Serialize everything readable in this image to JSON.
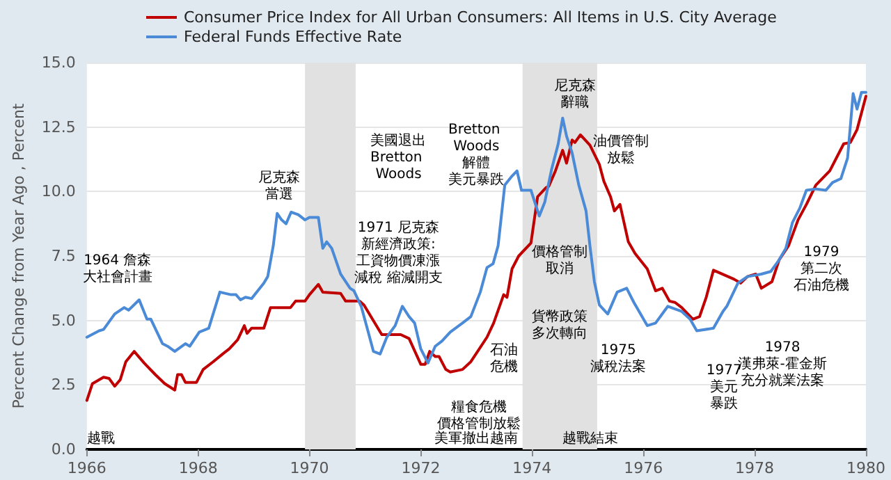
{
  "chart_data": {
    "type": "line",
    "ylabel": "Percent Change from Year Ago , Percent",
    "xlim": [
      1966,
      1980
    ],
    "xticks": [
      1966,
      1968,
      1970,
      1972,
      1974,
      1976,
      1978,
      1980
    ],
    "ylim": [
      0,
      15
    ],
    "yticks": [
      {
        "value": 0,
        "label": "0.0"
      },
      {
        "value": 2.5,
        "label": "2.5"
      },
      {
        "value": 5,
        "label": "5.0"
      },
      {
        "value": 7.5,
        "label": "7.5"
      },
      {
        "value": 10,
        "label": "10.0"
      },
      {
        "value": 12.5,
        "label": "12.5"
      },
      {
        "value": 15,
        "label": "15.0"
      }
    ],
    "grid": "y",
    "legend": "top left",
    "bands": [
      {
        "axis": "x",
        "from": 1969.92,
        "to": 1970.83,
        "color": "#e1e1e1"
      },
      {
        "axis": "x",
        "from": 1973.83,
        "to": 1975.17,
        "color": "#e1e1e1"
      }
    ],
    "series": [
      {
        "name": "Consumer Price Index for All Urban Consumers: All Items in U.S. City Average",
        "color": "#c00000",
        "x": [
          1966.0,
          1966.1,
          1966.3,
          1966.4,
          1966.5,
          1966.6,
          1966.7,
          1966.85,
          1967.03,
          1967.23,
          1967.4,
          1967.58,
          1967.63,
          1967.7,
          1967.77,
          1967.97,
          1968.09,
          1968.27,
          1968.44,
          1968.56,
          1968.71,
          1968.83,
          1968.88,
          1968.96,
          1969.18,
          1969.3,
          1969.66,
          1969.75,
          1969.92,
          1970.0,
          1970.16,
          1970.24,
          1970.56,
          1970.65,
          1970.9,
          1970.98,
          1971.3,
          1971.64,
          1971.79,
          1972.0,
          1972.08,
          1972.16,
          1972.26,
          1972.33,
          1972.45,
          1972.53,
          1972.75,
          1972.9,
          1973.19,
          1973.31,
          1973.49,
          1973.55,
          1973.64,
          1973.76,
          1973.98,
          1974.1,
          1974.25,
          1974.3,
          1974.42,
          1974.55,
          1974.62,
          1974.72,
          1974.77,
          1974.87,
          1975.04,
          1975.21,
          1975.29,
          1975.41,
          1975.48,
          1975.58,
          1975.73,
          1975.85,
          1976.07,
          1976.22,
          1976.34,
          1976.47,
          1976.57,
          1976.69,
          1976.89,
          1977.01,
          1977.13,
          1977.26,
          1977.63,
          1977.75,
          1977.87,
          1978.02,
          1978.12,
          1978.31,
          1978.44,
          1978.61,
          1978.78,
          1978.93,
          1979.1,
          1979.35,
          1979.6,
          1979.72,
          1979.84,
          1980.0
        ],
        "values": [
          1.9,
          2.55,
          2.8,
          2.75,
          2.45,
          2.7,
          3.4,
          3.8,
          3.35,
          2.9,
          2.55,
          2.3,
          2.9,
          2.9,
          2.6,
          2.6,
          3.1,
          3.4,
          3.7,
          3.9,
          4.25,
          4.8,
          4.5,
          4.7,
          4.7,
          5.5,
          5.5,
          5.75,
          5.75,
          6.0,
          6.4,
          6.1,
          6.05,
          5.75,
          5.75,
          5.6,
          4.45,
          4.45,
          4.3,
          3.3,
          3.3,
          3.8,
          3.6,
          3.6,
          3.1,
          3.0,
          3.1,
          3.4,
          4.35,
          4.9,
          6.0,
          5.9,
          7.0,
          7.5,
          8.0,
          9.8,
          10.15,
          10.2,
          10.8,
          11.6,
          11.1,
          12.0,
          11.9,
          12.2,
          11.8,
          11.05,
          10.4,
          9.8,
          9.25,
          9.5,
          8.05,
          7.6,
          7.0,
          6.15,
          6.25,
          5.75,
          5.7,
          5.5,
          5.05,
          5.15,
          5.9,
          6.95,
          6.6,
          6.45,
          6.7,
          6.8,
          6.25,
          6.5,
          7.35,
          7.9,
          8.9,
          9.5,
          10.25,
          10.8,
          11.85,
          11.9,
          12.4,
          13.7
        ]
      },
      {
        "name": "Federal Funds Effective Rate",
        "color": "#4a8ad6",
        "x": [
          1966.0,
          1966.22,
          1966.3,
          1966.5,
          1966.67,
          1966.75,
          1966.94,
          1967.08,
          1967.15,
          1967.36,
          1967.45,
          1967.58,
          1967.77,
          1967.85,
          1968.02,
          1968.19,
          1968.39,
          1968.59,
          1968.68,
          1968.76,
          1968.85,
          1968.96,
          1969.18,
          1969.25,
          1969.35,
          1969.42,
          1969.5,
          1969.58,
          1969.67,
          1969.8,
          1969.92,
          1970.0,
          1970.16,
          1970.24,
          1970.31,
          1970.4,
          1970.56,
          1970.73,
          1970.8,
          1970.93,
          1971.05,
          1971.15,
          1971.27,
          1971.39,
          1971.54,
          1971.67,
          1971.79,
          1971.89,
          1972.0,
          1972.13,
          1972.26,
          1972.38,
          1972.53,
          1972.75,
          1972.9,
          1973.07,
          1973.19,
          1973.3,
          1973.39,
          1973.51,
          1973.64,
          1973.73,
          1973.81,
          1973.98,
          1974.13,
          1974.23,
          1974.35,
          1974.47,
          1974.55,
          1974.62,
          1974.72,
          1974.84,
          1974.97,
          1975.04,
          1975.12,
          1975.21,
          1975.36,
          1975.53,
          1975.7,
          1975.83,
          1976.07,
          1976.22,
          1976.44,
          1976.69,
          1976.84,
          1976.96,
          1977.26,
          1977.43,
          1977.5,
          1977.7,
          1977.87,
          1978.12,
          1978.29,
          1978.44,
          1978.56,
          1978.68,
          1978.81,
          1978.93,
          1979.1,
          1979.28,
          1979.4,
          1979.55,
          1979.67,
          1979.77,
          1979.84,
          1979.92,
          1980.0
        ],
        "values": [
          4.35,
          4.6,
          4.65,
          5.25,
          5.5,
          5.4,
          5.8,
          5.05,
          5.05,
          4.1,
          4.0,
          3.8,
          4.1,
          4.0,
          4.55,
          4.7,
          6.1,
          6.0,
          6.0,
          5.8,
          5.9,
          5.85,
          6.45,
          6.7,
          7.9,
          9.15,
          8.9,
          8.75,
          9.2,
          9.1,
          8.9,
          9.0,
          9.0,
          7.8,
          8.05,
          7.8,
          6.8,
          6.25,
          6.15,
          5.55,
          4.6,
          3.8,
          3.7,
          4.35,
          4.8,
          5.55,
          5.15,
          4.9,
          3.9,
          3.35,
          4.0,
          4.2,
          4.55,
          4.9,
          5.15,
          6.1,
          7.05,
          7.2,
          7.9,
          10.25,
          10.6,
          10.8,
          10.05,
          10.05,
          9.05,
          9.6,
          10.85,
          11.85,
          12.85,
          12.15,
          11.5,
          10.25,
          9.25,
          7.9,
          6.5,
          5.6,
          5.25,
          6.1,
          6.25,
          5.7,
          4.8,
          4.9,
          5.55,
          5.35,
          5.05,
          4.6,
          4.7,
          5.35,
          5.55,
          6.45,
          6.7,
          6.8,
          6.9,
          7.35,
          7.8,
          8.8,
          9.35,
          10.05,
          10.1,
          10.05,
          10.35,
          10.5,
          11.3,
          13.8,
          13.2,
          13.85,
          13.85
        ]
      }
    ],
    "annotations": [
      "1964 詹森大社會計畫",
      "尼克森當選",
      "美國退出Bretton Woods",
      "1971 尼克森新經濟政策:工資物價凍漲減稅 縮減開支",
      "Bretton Woods解體美元暴跌",
      "尼克森辭職",
      "價格管制取消",
      "油價管制放鬆",
      "石油危機",
      "貨幣政策多次轉向",
      "1975減稅法案",
      "糧食危機價格管制放鬆",
      "美軍撤出越南",
      "越戰結束",
      "越戰",
      "1977美元暴跌",
      "1978漢弗萊-霍金斯充分就業法案",
      "1979第二次石油危機"
    ]
  }
}
